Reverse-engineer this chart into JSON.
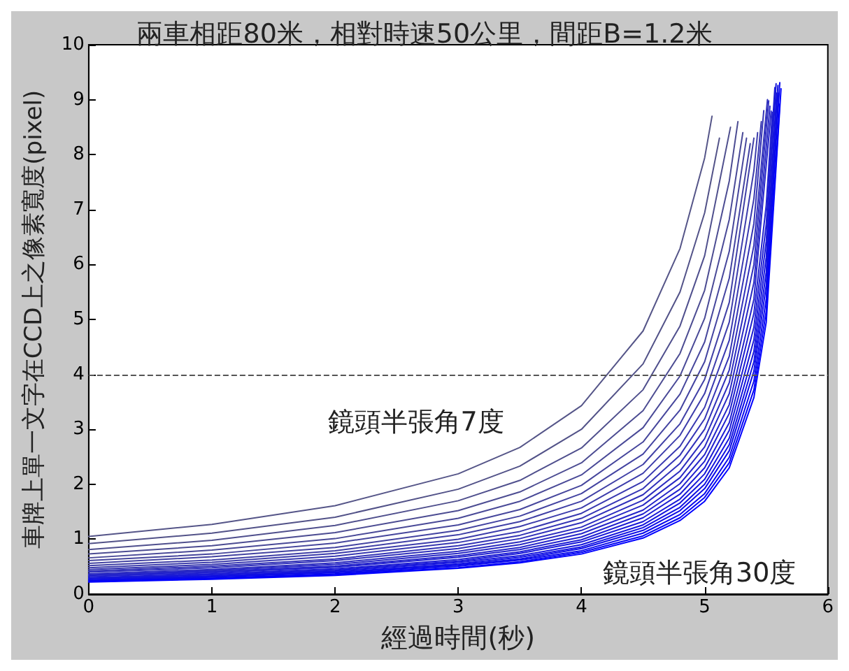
{
  "chart_data": {
    "type": "line",
    "title": "兩車相距80米，相對時速50公里，間距B=1.2米",
    "xlabel": "經過時間(秒)",
    "ylabel": "車牌上單一文字在CCD上之像素寬度(pixel)",
    "xlim": [
      0,
      6
    ],
    "xticks": [
      0,
      1,
      2,
      3,
      4,
      5,
      6
    ],
    "ylim": [
      0,
      10
    ],
    "yticks": [
      0,
      1,
      2,
      3,
      4,
      5,
      6,
      7,
      8,
      9,
      10
    ],
    "grid": false,
    "marker": "none",
    "line_style": "solid",
    "ref_lines": [
      {
        "axis": "y",
        "value": 4,
        "label": null,
        "color": "#555555",
        "line_style": "dashed"
      }
    ],
    "annotations": [
      "鏡頭半張角7度",
      "鏡頭半張角30度"
    ],
    "series": [
      {
        "color": "#555588",
        "x": [
          0,
          1,
          2,
          3,
          3.5,
          4,
          4.5,
          4.8,
          5,
          5.06
        ],
        "values": [
          1.05,
          1.27,
          1.61,
          2.19,
          2.67,
          3.43,
          4.79,
          6.29,
          7.94,
          8.7
        ]
      },
      {
        "color": "#525288",
        "x": [
          0,
          1,
          2,
          3,
          3.5,
          4,
          4.5,
          4.8,
          5,
          5.12
        ],
        "values": [
          0.92,
          1.11,
          1.4,
          1.91,
          2.33,
          3,
          4.19,
          5.5,
          6.94,
          8.3
        ]
      },
      {
        "color": "#4f4f8d",
        "x": [
          0,
          1,
          2,
          3,
          3.5,
          4,
          4.5,
          4.8,
          5,
          5.21
        ],
        "values": [
          0.81,
          0.98,
          1.25,
          1.7,
          2.07,
          2.66,
          3.72,
          4.88,
          6.16,
          8.5
        ]
      },
      {
        "color": "#4c4c92",
        "x": [
          0,
          1,
          2,
          3,
          3.5,
          4,
          4.5,
          4.8,
          5,
          5.2,
          5.27
        ],
        "values": [
          0.73,
          0.88,
          1.12,
          1.52,
          1.86,
          2.39,
          3.34,
          4.38,
          5.53,
          7.52,
          8.6
        ]
      },
      {
        "color": "#494997",
        "x": [
          0,
          1,
          2,
          3,
          3.5,
          4,
          4.5,
          4.8,
          5,
          5.2,
          5.31
        ],
        "values": [
          0.66,
          0.8,
          1.01,
          1.38,
          1.69,
          2.17,
          3.03,
          3.97,
          5.02,
          6.82,
          8.4
        ]
      },
      {
        "color": "#46469c",
        "x": [
          0,
          1,
          2,
          3,
          3.5,
          4,
          4.5,
          4.8,
          5,
          5.2,
          5.34
        ],
        "values": [
          0.61,
          0.73,
          0.93,
          1.26,
          1.54,
          1.98,
          2.77,
          3.64,
          4.59,
          6.24,
          8.3
        ]
      },
      {
        "color": "#4343a1",
        "x": [
          0,
          1,
          2,
          3,
          3.5,
          4,
          4.5,
          4.8,
          5,
          5.2,
          5.37
        ],
        "values": [
          0.56,
          0.68,
          0.85,
          1.16,
          1.42,
          1.83,
          2.55,
          3.35,
          4.23,
          5.75,
          8.2
        ]
      },
      {
        "color": "#4040a6",
        "x": [
          0,
          1,
          2,
          3,
          3.5,
          4,
          4.5,
          4.8,
          5,
          5.2,
          5.4
        ],
        "values": [
          0.52,
          0.62,
          0.79,
          1.08,
          1.32,
          1.69,
          2.36,
          3.1,
          3.91,
          5.31,
          8.3
        ]
      },
      {
        "color": "#3c3cab",
        "x": [
          0,
          1,
          2,
          3,
          3.5,
          4,
          4.5,
          4.8,
          5,
          5.2,
          5.4,
          5.43
        ],
        "values": [
          0.48,
          0.58,
          0.74,
          1,
          1.23,
          1.57,
          2.2,
          2.89,
          3.65,
          4.95,
          7.71,
          8.4
        ]
      },
      {
        "color": "#3838b0",
        "x": [
          0,
          1,
          2,
          3,
          3.5,
          4,
          4.5,
          4.8,
          5,
          5.2,
          5.4,
          5.46
        ],
        "values": [
          0.45,
          0.54,
          0.69,
          0.94,
          1.14,
          1.47,
          2.05,
          2.69,
          3.4,
          4.62,
          7.2,
          8.6
        ]
      },
      {
        "color": "#3434b5",
        "x": [
          0,
          1,
          2,
          3,
          3.5,
          4,
          4.5,
          4.8,
          5,
          5.2,
          5.4,
          5.48
        ],
        "values": [
          0.42,
          0.51,
          0.64,
          0.88,
          1.07,
          1.38,
          1.92,
          2.53,
          3.19,
          4.33,
          6.75,
          8.8
        ]
      },
      {
        "color": "#3030ba",
        "x": [
          0,
          1,
          2,
          3,
          3.5,
          4,
          4.5,
          4.8,
          5,
          5.2,
          5.4,
          5.51
        ],
        "values": [
          0.4,
          0.48,
          0.61,
          0.83,
          1.01,
          1.3,
          1.81,
          2.38,
          3,
          4.08,
          6.35,
          9
        ]
      },
      {
        "color": "#2c2cbf",
        "x": [
          0,
          1,
          2,
          3,
          3.5,
          4,
          4.5,
          4.8,
          5,
          5.2,
          5.4,
          5.52
        ],
        "values": [
          0.37,
          0.45,
          0.57,
          0.78,
          0.95,
          1.22,
          1.71,
          2.24,
          2.83,
          3.85,
          6,
          8.98
        ]
      },
      {
        "color": "#2828c4",
        "x": [
          0,
          1,
          2,
          3,
          3.5,
          4,
          4.5,
          4.8,
          5,
          5.2,
          5.4,
          5.53
        ],
        "values": [
          0.35,
          0.43,
          0.54,
          0.74,
          0.9,
          1.16,
          1.62,
          2.12,
          2.68,
          3.65,
          5.67,
          8.88
        ]
      },
      {
        "color": "#2424c9",
        "x": [
          0,
          1,
          2,
          3,
          3.5,
          4,
          4.5,
          4.8,
          5,
          5.2,
          5.4,
          5.54
        ],
        "values": [
          0.34,
          0.41,
          0.51,
          0.7,
          0.85,
          1.1,
          1.53,
          2.01,
          2.54,
          3.45,
          5.37,
          8.79
        ]
      },
      {
        "color": "#2020ce",
        "x": [
          0,
          1,
          2,
          3,
          3.5,
          4,
          4.5,
          4.8,
          5,
          5.2,
          5.4,
          5.5,
          5.55
        ],
        "values": [
          0.32,
          0.39,
          0.49,
          0.67,
          0.81,
          1.04,
          1.46,
          1.91,
          2.42,
          3.29,
          5.11,
          7.08,
          8.77
        ]
      },
      {
        "color": "#1c1cd3",
        "x": [
          0,
          1,
          2,
          3,
          3.5,
          4,
          4.5,
          4.8,
          5,
          5.2,
          5.4,
          5.5,
          5.57
        ],
        "values": [
          0.3,
          0.37,
          0.46,
          0.63,
          0.77,
          0.99,
          1.39,
          1.82,
          2.3,
          3.12,
          4.86,
          6.73,
          9.22
        ]
      },
      {
        "color": "#1818d8",
        "x": [
          0,
          1,
          2,
          3,
          3.5,
          4,
          4.5,
          4.8,
          5,
          5.2,
          5.4,
          5.5,
          5.58
        ],
        "values": [
          0.29,
          0.35,
          0.44,
          0.6,
          0.74,
          0.95,
          1.32,
          1.73,
          2.19,
          2.98,
          4.63,
          6.42,
          9.29
        ]
      },
      {
        "color": "#1414dd",
        "x": [
          0,
          1,
          2,
          3,
          3.5,
          4,
          4.5,
          4.8,
          5,
          5.2,
          5.4,
          5.5,
          5.585
        ],
        "values": [
          0.28,
          0.33,
          0.42,
          0.58,
          0.7,
          0.9,
          1.26,
          1.66,
          2.09,
          2.84,
          4.42,
          6.13,
          9.12
        ]
      },
      {
        "color": "#1010e2",
        "x": [
          0,
          1,
          2,
          3,
          3.5,
          4,
          4.5,
          4.8,
          5,
          5.2,
          5.4,
          5.5,
          5.595
        ],
        "values": [
          0.26,
          0.32,
          0.4,
          0.55,
          0.67,
          0.86,
          1.21,
          1.58,
          2,
          2.72,
          4.23,
          5.86,
          9.26
        ]
      },
      {
        "color": "#0c0ce7",
        "x": [
          0,
          1,
          2,
          3,
          3.5,
          4,
          4.5,
          4.8,
          5,
          5.2,
          5.4,
          5.5,
          5.6
        ],
        "values": [
          0.25,
          0.31,
          0.39,
          0.53,
          0.64,
          0.83,
          1.16,
          1.52,
          1.92,
          2.61,
          4.06,
          5.62,
          9.12
        ]
      },
      {
        "color": "#0808ec",
        "x": [
          0,
          1,
          2,
          3,
          3.5,
          4,
          4.5,
          4.8,
          5,
          5.2,
          5.4,
          5.5,
          5.61
        ],
        "values": [
          0.24,
          0.29,
          0.37,
          0.51,
          0.62,
          0.79,
          1.11,
          1.45,
          1.83,
          2.49,
          3.88,
          5.37,
          9.31
        ]
      },
      {
        "color": "#0404f4",
        "x": [
          0,
          1,
          2,
          3,
          3.5,
          4,
          4.5,
          4.8,
          5,
          5.2,
          5.4,
          5.5,
          5.61
        ],
        "values": [
          0.23,
          0.28,
          0.36,
          0.48,
          0.59,
          0.76,
          1.06,
          1.39,
          1.76,
          2.39,
          3.72,
          5.15,
          8.92
        ]
      },
      {
        "color": "#0000ff",
        "x": [
          0,
          1,
          2,
          3,
          3.5,
          4,
          4.5,
          4.8,
          5,
          5.2,
          5.4,
          5.5,
          5.62
        ],
        "values": [
          0.22,
          0.27,
          0.34,
          0.47,
          0.57,
          0.73,
          1.02,
          1.34,
          1.69,
          2.3,
          3.58,
          4.95,
          9.2
        ]
      }
    ]
  }
}
